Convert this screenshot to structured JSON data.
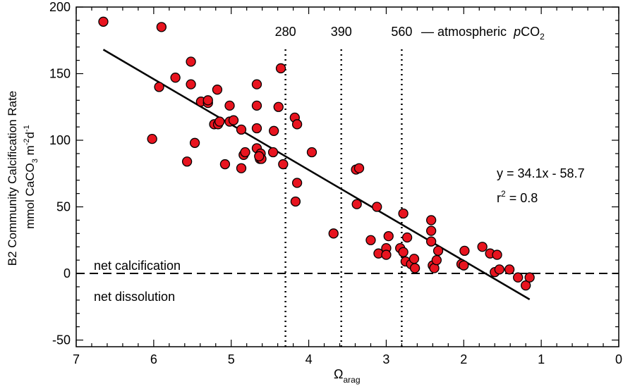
{
  "chart_data": {
    "type": "scatter",
    "xlabel": "Ω",
    "xlabel_sub": "arag",
    "ylabel_line1": "B2 Community Calcification Rate",
    "ylabel_line2": {
      "a": "mmol CaCO",
      "b": "3",
      "c": " m",
      "d": "-2",
      "e": "d",
      "f": "-1"
    },
    "xlim": [
      7,
      0
    ],
    "ylim": [
      -55,
      200
    ],
    "x_reversed": true,
    "grid": false,
    "x_ticks": [
      7,
      6,
      5,
      4,
      3,
      2,
      1,
      0
    ],
    "y_ticks": [
      200,
      150,
      100,
      50,
      0,
      -50
    ],
    "points": [
      [
        6.65,
        189
      ],
      [
        5.9,
        185
      ],
      [
        5.93,
        140
      ],
      [
        6.02,
        101
      ],
      [
        5.72,
        147
      ],
      [
        5.52,
        159
      ],
      [
        5.52,
        142
      ],
      [
        5.39,
        129
      ],
      [
        5.3,
        128
      ],
      [
        5.3,
        130
      ],
      [
        5.18,
        138
      ],
      [
        5.22,
        112
      ],
      [
        5.17,
        112
      ],
      [
        5.15,
        114
      ],
      [
        5.02,
        126
      ],
      [
        5.02,
        114
      ],
      [
        4.97,
        115
      ],
      [
        4.67,
        142
      ],
      [
        4.67,
        126
      ],
      [
        4.87,
        108
      ],
      [
        4.67,
        109
      ],
      [
        4.84,
        89
      ],
      [
        4.82,
        91
      ],
      [
        4.87,
        79
      ],
      [
        4.67,
        94
      ],
      [
        4.62,
        90
      ],
      [
        4.63,
        86
      ],
      [
        4.61,
        86
      ],
      [
        4.64,
        88
      ],
      [
        5.47,
        98
      ],
      [
        5.57,
        84
      ],
      [
        5.08,
        82
      ],
      [
        4.45,
        107
      ],
      [
        4.46,
        91
      ],
      [
        4.36,
        154
      ],
      [
        4.39,
        125
      ],
      [
        4.33,
        82
      ],
      [
        4.18,
        117
      ],
      [
        4.15,
        112
      ],
      [
        4.15,
        68
      ],
      [
        4.17,
        54
      ],
      [
        3.96,
        91
      ],
      [
        3.68,
        30
      ],
      [
        3.39,
        78
      ],
      [
        3.35,
        79
      ],
      [
        3.38,
        52
      ],
      [
        3.12,
        50
      ],
      [
        3.2,
        25
      ],
      [
        3.1,
        15
      ],
      [
        3.0,
        19
      ],
      [
        3.0,
        14
      ],
      [
        2.97,
        28
      ],
      [
        2.82,
        19
      ],
      [
        2.78,
        45
      ],
      [
        2.78,
        16
      ],
      [
        2.73,
        27
      ],
      [
        2.75,
        9
      ],
      [
        2.68,
        7
      ],
      [
        2.64,
        11
      ],
      [
        2.63,
        4
      ],
      [
        2.42,
        40
      ],
      [
        2.42,
        32
      ],
      [
        2.42,
        24
      ],
      [
        2.4,
        6
      ],
      [
        2.38,
        4
      ],
      [
        2.35,
        10
      ],
      [
        2.33,
        17
      ],
      [
        2.03,
        7
      ],
      [
        2.0,
        6
      ],
      [
        1.99,
        17
      ],
      [
        1.76,
        20
      ],
      [
        1.66,
        15
      ],
      [
        1.6,
        1
      ],
      [
        1.57,
        14
      ],
      [
        1.54,
        3
      ],
      [
        1.41,
        3
      ],
      [
        1.3,
        -3
      ],
      [
        1.2,
        -9
      ],
      [
        1.15,
        -3
      ]
    ],
    "fit": {
      "slope": 34.1,
      "intercept": -58.7,
      "x_range": [
        6.65,
        1.15
      ]
    },
    "vlines": [
      {
        "x": 4.3,
        "label": "280"
      },
      {
        "x": 3.58,
        "label": "390"
      },
      {
        "x": 2.8,
        "label": "560"
      }
    ],
    "hline": {
      "y": 0
    },
    "annotations": {
      "pco2_suffix": "— atmospheric",
      "pco2_p": "p",
      "pco2_co": "CO",
      "pco2_sub": "2",
      "equation": "y = 34.1x - 58.7",
      "r2_a": "r",
      "r2_sup": "2",
      "r2_b": " = 0.8",
      "net_calcification": "net calcification",
      "net_dissolution": "net dissolution"
    },
    "colors": {
      "marker_fill": "#e8141f",
      "marker_edge": "#000000",
      "fit_line": "#000000"
    }
  }
}
